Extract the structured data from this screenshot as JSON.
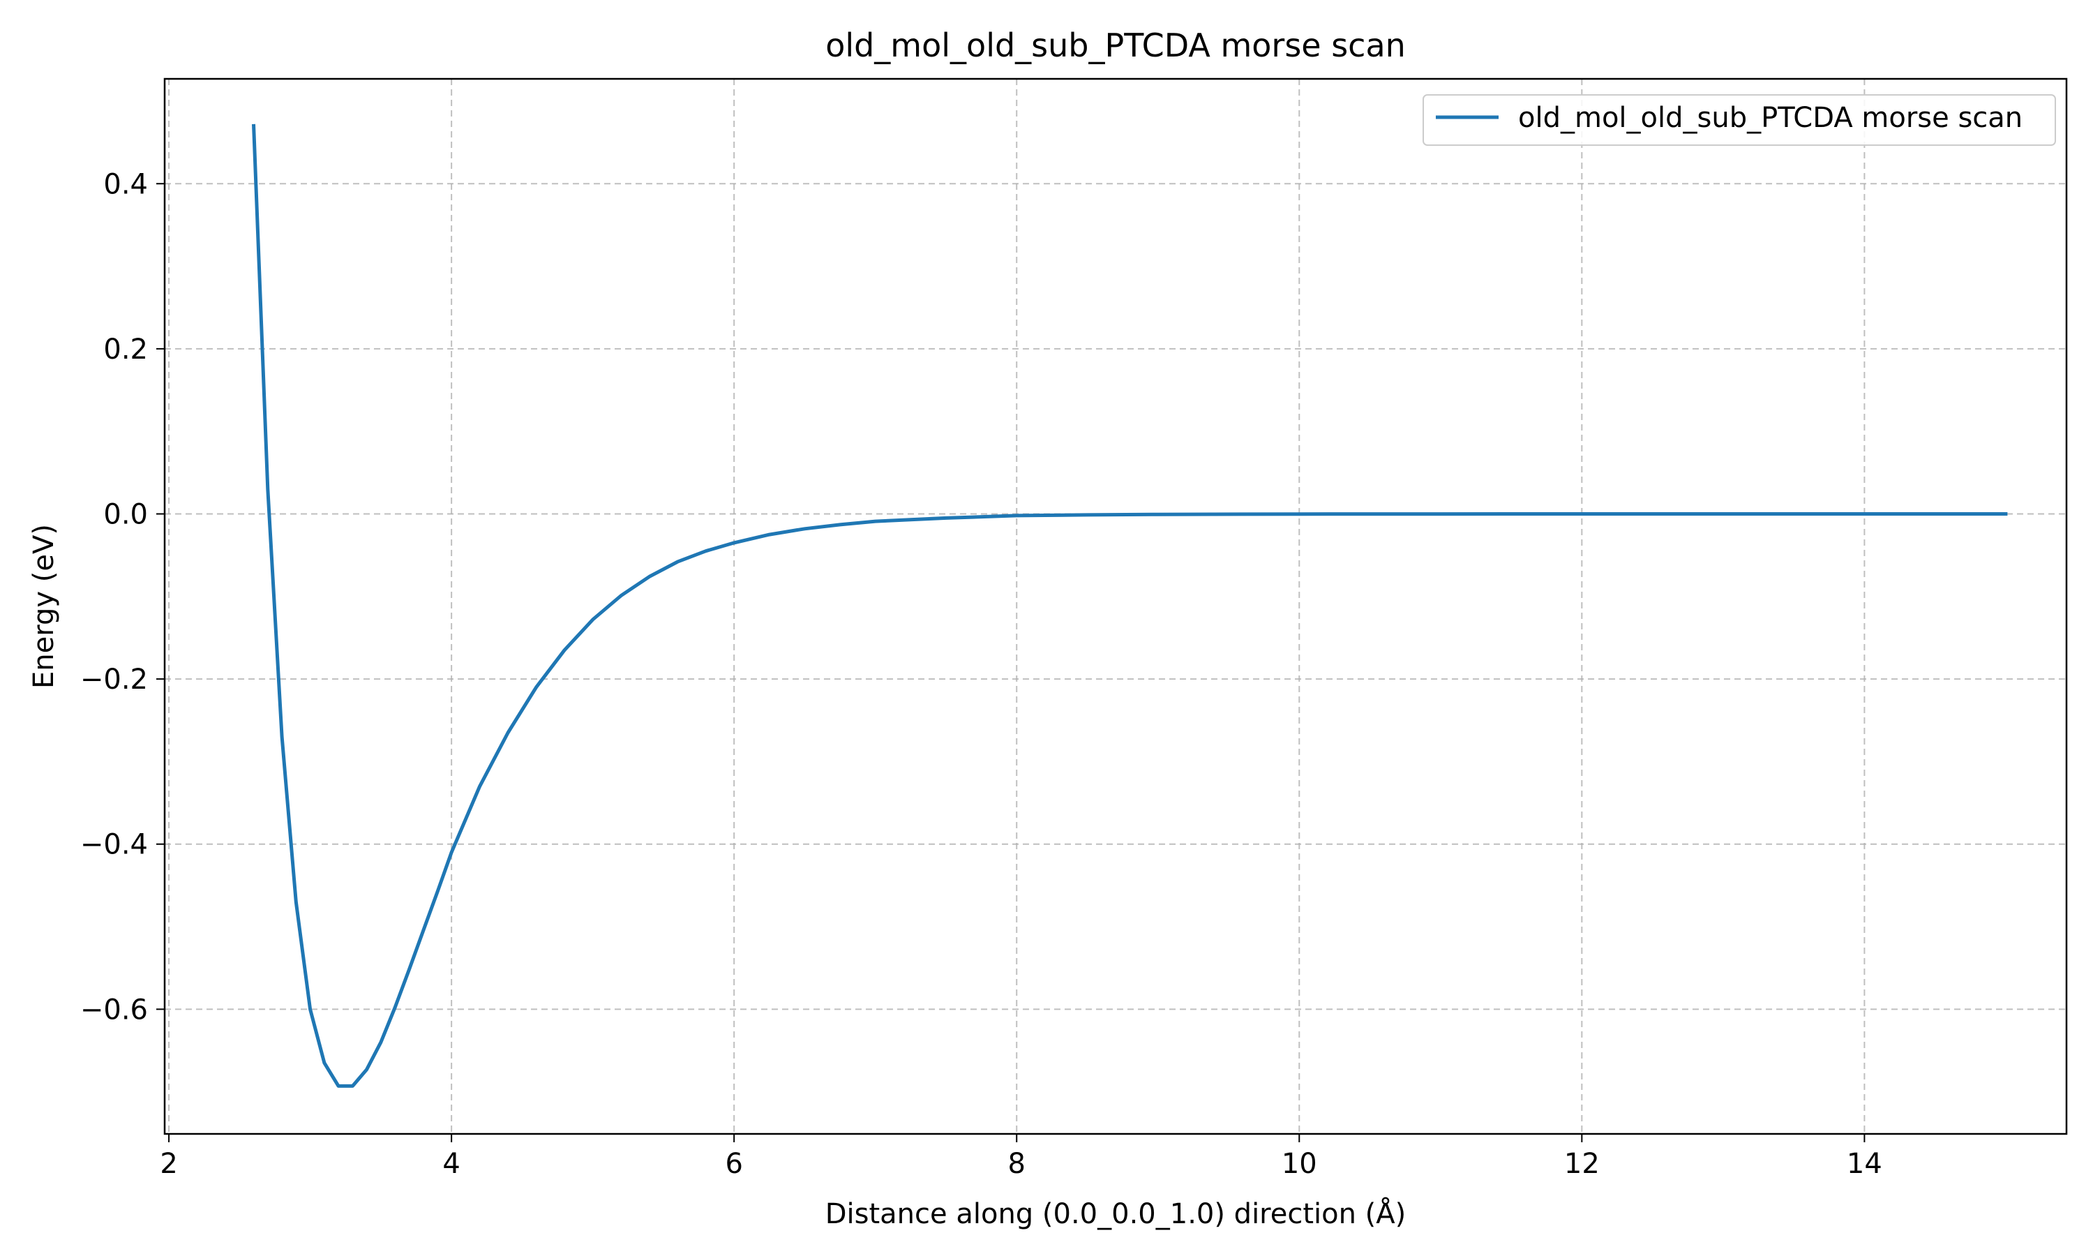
{
  "chart_data": {
    "type": "line",
    "title": "old_mol_old_sub_PTCDA morse scan",
    "xlabel": "Distance along (0.0_0.0_1.0) direction (Å)",
    "ylabel": "Energy (eV)",
    "xlim": [
      1.97,
      15.43
    ],
    "ylim": [
      -0.751,
      0.527
    ],
    "x_ticks": [
      2,
      4,
      6,
      8,
      10,
      12,
      14
    ],
    "x_tick_labels": [
      "2",
      "4",
      "6",
      "8",
      "10",
      "12",
      "14"
    ],
    "y_ticks": [
      -0.6,
      -0.4,
      -0.2,
      0.0,
      0.2,
      0.4
    ],
    "y_tick_labels": [
      "−0.6",
      "−0.4",
      "−0.2",
      "0.0",
      "0.2",
      "0.4"
    ],
    "grid": true,
    "legend_position": "top-right",
    "series": [
      {
        "name": "old_mol_old_sub_PTCDA morse scan",
        "color": "#1f77b4",
        "x": [
          2.6,
          2.7,
          2.8,
          2.9,
          3.0,
          3.1,
          3.2,
          3.3,
          3.4,
          3.5,
          3.6,
          3.7,
          3.8,
          3.9,
          4.0,
          4.2,
          4.4,
          4.6,
          4.8,
          5.0,
          5.2,
          5.4,
          5.6,
          5.8,
          6.0,
          6.25,
          6.5,
          6.75,
          7.0,
          7.5,
          8.0,
          8.5,
          9.0,
          10.0,
          11.0,
          12.0,
          13.0,
          14.0,
          15.0
        ],
        "y": [
          0.47,
          0.03,
          -0.27,
          -0.47,
          -0.6,
          -0.665,
          -0.693,
          -0.693,
          -0.673,
          -0.64,
          -0.598,
          -0.552,
          -0.505,
          -0.458,
          -0.41,
          -0.33,
          -0.265,
          -0.21,
          -0.165,
          -0.128,
          -0.099,
          -0.076,
          -0.058,
          -0.045,
          -0.035,
          -0.025,
          -0.018,
          -0.013,
          -0.009,
          -0.005,
          -0.002,
          -0.0012,
          -0.0006,
          -0.0002,
          -7e-05,
          -2e-05,
          0.0,
          0.0,
          0.0
        ]
      }
    ]
  }
}
